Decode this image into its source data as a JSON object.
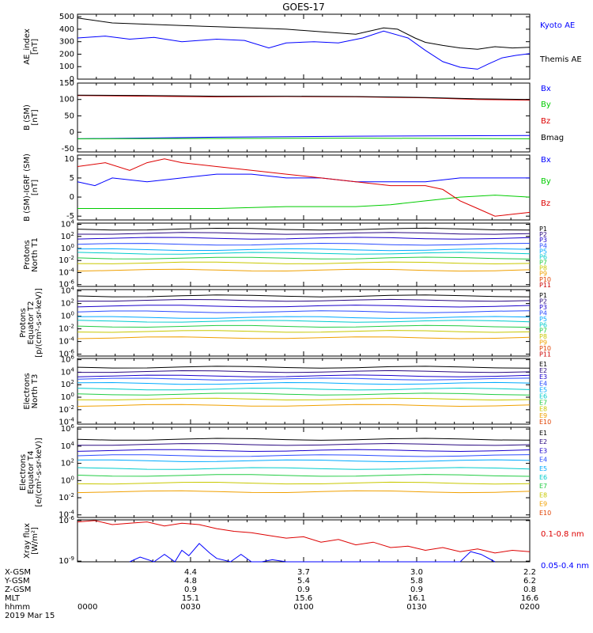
{
  "title": "GOES-17",
  "footer": {
    "rows": [
      "X-GSM",
      "Y-GSM",
      "Z-GSM",
      "MLT",
      "hhmm"
    ],
    "date": "2019 Mar 15",
    "columns": [
      {
        "values": [
          "",
          "",
          "",
          "",
          "0000"
        ]
      },
      {
        "values": [
          "4.4",
          "4.8",
          "0.9",
          "15.1",
          "0030"
        ]
      },
      {
        "values": [
          "3.7",
          "5.4",
          "0.9",
          "15.6",
          "0100"
        ]
      },
      {
        "values": [
          "3.0",
          "5.8",
          "0.9",
          "16.1",
          "0130"
        ]
      },
      {
        "values": [
          "2.2",
          "6.2",
          "0.8",
          "16.6",
          "0200"
        ]
      }
    ]
  },
  "colors": {
    "black": "#000000",
    "blue": "#0000ff",
    "green": "#00cc00",
    "red": "#dd0000",
    "P": [
      "#000000",
      "#2a0a80",
      "#1a00cc",
      "#2a4cff",
      "#00aaff",
      "#00cccc",
      "#22cc44",
      "#c8c800",
      "#f0a000",
      "#e04000",
      "#cc0000"
    ],
    "E": [
      "#000000",
      "#2a0a80",
      "#1a00cc",
      "#2a4cff",
      "#00aaff",
      "#00cccc",
      "#22cc44",
      "#c8c800",
      "#f0a000",
      "#e04000",
      "#cc0000"
    ]
  },
  "chart_data": [
    {
      "type": "line",
      "ylabel": "AE_index\n[nT]",
      "ylim": [
        0,
        520
      ],
      "yticks": [
        {
          "v": 0,
          "t": "0"
        },
        {
          "v": 100,
          "t": "100"
        },
        {
          "v": 200,
          "t": "200"
        },
        {
          "v": 300,
          "t": "300"
        },
        {
          "v": 400,
          "t": "400"
        },
        {
          "v": 500,
          "t": "500"
        }
      ],
      "series": [
        {
          "name": "Kyoto AE",
          "color": "#0000ff",
          "x": [
            0,
            8,
            15,
            22,
            30,
            40,
            48,
            55,
            60,
            68,
            75,
            82,
            88,
            95,
            100,
            105,
            110,
            115,
            118,
            122,
            126,
            130
          ],
          "y": [
            330,
            345,
            320,
            335,
            300,
            320,
            310,
            250,
            290,
            300,
            290,
            330,
            385,
            330,
            230,
            140,
            95,
            80,
            120,
            170,
            190,
            205
          ]
        },
        {
          "name": "Themis AE",
          "color": "#000000",
          "x": [
            0,
            10,
            20,
            30,
            40,
            50,
            60,
            70,
            80,
            88,
            92,
            97,
            100,
            105,
            110,
            115,
            120,
            125,
            130
          ],
          "y": [
            490,
            450,
            440,
            430,
            420,
            410,
            400,
            380,
            360,
            410,
            400,
            330,
            295,
            270,
            250,
            240,
            260,
            250,
            255
          ]
        }
      ]
    },
    {
      "type": "line",
      "ylabel": "B (SM)\n[nT]",
      "ylim": [
        -60,
        150
      ],
      "yticks": [
        {
          "v": -50,
          "t": "-50"
        },
        {
          "v": 0,
          "t": "0"
        },
        {
          "v": 50,
          "t": "50"
        },
        {
          "v": 100,
          "t": "100"
        },
        {
          "v": 150,
          "t": "150"
        }
      ],
      "series": [
        {
          "name": "Bx",
          "color": "#0000ff",
          "x": [
            0,
            40,
            80,
            130
          ],
          "y": [
            -20,
            -15,
            -12,
            -10
          ]
        },
        {
          "name": "By",
          "color": "#00cc00",
          "x": [
            0,
            40,
            80,
            130
          ],
          "y": [
            -20,
            -19,
            -18,
            -20
          ]
        },
        {
          "name": "Bz",
          "color": "#dd0000",
          "x": [
            0,
            20,
            40,
            60,
            80,
            100,
            115,
            130
          ],
          "y": [
            112,
            110,
            108,
            109,
            108,
            105,
            100,
            98
          ]
        },
        {
          "name": "Bmag",
          "color": "#000000",
          "x": [
            0,
            20,
            40,
            60,
            80,
            100,
            115,
            130
          ],
          "y": [
            113,
            112,
            110,
            110,
            109,
            106,
            102,
            100
          ]
        }
      ]
    },
    {
      "type": "line",
      "ylabel": "B (SM)-IGRF (SM)\n[nT]",
      "ylim": [
        -6,
        11
      ],
      "yticks": [
        {
          "v": -5,
          "t": "-5"
        },
        {
          "v": 0,
          "t": "0"
        },
        {
          "v": 5,
          "t": "5"
        },
        {
          "v": 10,
          "t": "10"
        }
      ],
      "series": [
        {
          "name": "Bx",
          "color": "#0000ff",
          "x": [
            0,
            5,
            10,
            20,
            30,
            40,
            50,
            60,
            70,
            80,
            90,
            100,
            110,
            120,
            130
          ],
          "y": [
            4,
            3,
            5,
            4,
            5,
            6,
            6,
            5,
            5,
            4,
            4,
            4,
            5,
            5,
            5
          ]
        },
        {
          "name": "By",
          "color": "#00cc00",
          "x": [
            0,
            20,
            40,
            60,
            80,
            90,
            100,
            110,
            120,
            130
          ],
          "y": [
            -3,
            -3,
            -3,
            -2.5,
            -2.5,
            -2,
            -1,
            0,
            0.5,
            0
          ]
        },
        {
          "name": "Bz",
          "color": "#dd0000",
          "x": [
            0,
            8,
            15,
            20,
            25,
            30,
            40,
            50,
            60,
            70,
            80,
            90,
            100,
            105,
            110,
            115,
            120,
            125,
            130
          ],
          "y": [
            8,
            9,
            7,
            9,
            10,
            9,
            8,
            7,
            6,
            5,
            4,
            3,
            3,
            2,
            -1,
            -3,
            -5,
            -4.5,
            -4
          ]
        }
      ]
    },
    {
      "type": "line",
      "scale": "log",
      "ylabel": "Protons\nNorth T1",
      "ylim": [
        -6.3,
        4.2
      ],
      "yticks": [
        {
          "v": 4,
          "t": "10^4"
        },
        {
          "v": 2,
          "t": "10^2"
        },
        {
          "v": 0,
          "t": "10^0"
        },
        {
          "v": -2,
          "t": "10^-2"
        },
        {
          "v": -4,
          "t": "10^-4"
        },
        {
          "v": -6,
          "t": "10^-6"
        }
      ],
      "legend": [
        "P1",
        "P2",
        "P3",
        "P4",
        "P5",
        "P6",
        "P7",
        "P8",
        "P9",
        "P10",
        "P11"
      ],
      "levels": [
        3.2,
        2.5,
        1.7,
        0.7,
        -0.2,
        -0.8,
        -1.6,
        -2.4,
        -3.6
      ]
    },
    {
      "type": "line",
      "scale": "log",
      "ylabel": "Protons\nEquator T2\n[p/(cm²-s-sr-keV)]",
      "ylim": [
        -6.3,
        4.2
      ],
      "yticks": [
        {
          "v": 4,
          "t": "10^4"
        },
        {
          "v": 2,
          "t": "10^2"
        },
        {
          "v": 0,
          "t": "10^0"
        },
        {
          "v": -2,
          "t": "10^-2"
        },
        {
          "v": -4,
          "t": "10^-4"
        },
        {
          "v": -6,
          "t": "10^-6"
        }
      ],
      "legend": [
        "P1",
        "P2",
        "P3",
        "P4",
        "P5",
        "P6",
        "P7",
        "P8",
        "P9",
        "P10",
        "P11"
      ],
      "levels": [
        3.2,
        2.5,
        1.6,
        0.7,
        -0.2,
        -0.8,
        -1.6,
        -2.4,
        -3.4
      ]
    },
    {
      "type": "line",
      "scale": "log",
      "ylabel": "Electrons\nNorth T3",
      "ylim": [
        -4.3,
        6.2
      ],
      "yticks": [
        {
          "v": 6,
          "t": "10^6"
        },
        {
          "v": 4,
          "t": "10^4"
        },
        {
          "v": 2,
          "t": "10^2"
        },
        {
          "v": 0,
          "t": "10^0"
        },
        {
          "v": -2,
          "t": "10^-2"
        },
        {
          "v": -4,
          "t": "10^-4"
        }
      ],
      "legend": [
        "E1",
        "E2",
        "E3",
        "E4",
        "E5",
        "E6",
        "E7",
        "E8",
        "E9",
        "E10"
      ],
      "levels": [
        4.8,
        4.1,
        3.4,
        2.9,
        2.2,
        1.3,
        0.5,
        -0.3,
        -1.3
      ]
    },
    {
      "type": "line",
      "scale": "log",
      "ylabel": "Electrons\nEquator T4\n[e/(cm²-s-sr-keV)]",
      "ylim": [
        -4.3,
        6.2
      ],
      "yticks": [
        {
          "v": 6,
          "t": "10^6"
        },
        {
          "v": 4,
          "t": "10^4"
        },
        {
          "v": 2,
          "t": "10^2"
        },
        {
          "v": 0,
          "t": "10^0"
        },
        {
          "v": -2,
          "t": "10^-2"
        },
        {
          "v": -4,
          "t": "10^-4"
        }
      ],
      "legend": [
        "E1",
        "E2",
        "E3",
        "E4",
        "E5",
        "E6",
        "E7",
        "E8",
        "E9",
        "E10"
      ],
      "levels": [
        4.8,
        4.2,
        3.5,
        2.9,
        2.3,
        1.4,
        0.6,
        -0.3,
        -1.3
      ]
    },
    {
      "type": "line",
      "scale": "log",
      "ylabel": "Xray flux\n[W/m²]",
      "ylim": [
        -9.05,
        -5.95
      ],
      "yticks": [
        {
          "v": -6,
          "t": "10^-6"
        },
        {
          "v": -9,
          "t": "10^-9"
        }
      ],
      "series": [
        {
          "name": "0.1-0.8 nm",
          "color": "#dd0000",
          "x": [
            0,
            5,
            10,
            15,
            20,
            25,
            30,
            35,
            40,
            45,
            50,
            55,
            60,
            65,
            70,
            75,
            80,
            85,
            90,
            95,
            100,
            105,
            110,
            115,
            120,
            125,
            130
          ],
          "y": [
            -6.1,
            -6.0,
            -6.3,
            -6.2,
            -6.1,
            -6.4,
            -6.2,
            -6.3,
            -6.6,
            -6.8,
            -6.9,
            -7.1,
            -7.3,
            -7.2,
            -7.6,
            -7.4,
            -7.8,
            -7.6,
            -8.0,
            -7.9,
            -8.2,
            -8.0,
            -8.3,
            -8.1,
            -8.4,
            -8.2,
            -8.3
          ]
        },
        {
          "name": "0.05-0.4 nm",
          "color": "#0000ff",
          "x": [
            15,
            18,
            22,
            25,
            28,
            30,
            32,
            35,
            38,
            40,
            44,
            47,
            50,
            53,
            56,
            60,
            65,
            110,
            113,
            116,
            120
          ],
          "y": [
            -9.05,
            -8.7,
            -9.05,
            -8.5,
            -9.05,
            -8.2,
            -8.6,
            -7.7,
            -8.4,
            -8.8,
            -9.05,
            -8.5,
            -9.05,
            -9.05,
            -8.9,
            -9.05,
            -9.05,
            -9.05,
            -8.3,
            -8.5,
            -9.05
          ]
        }
      ]
    }
  ]
}
